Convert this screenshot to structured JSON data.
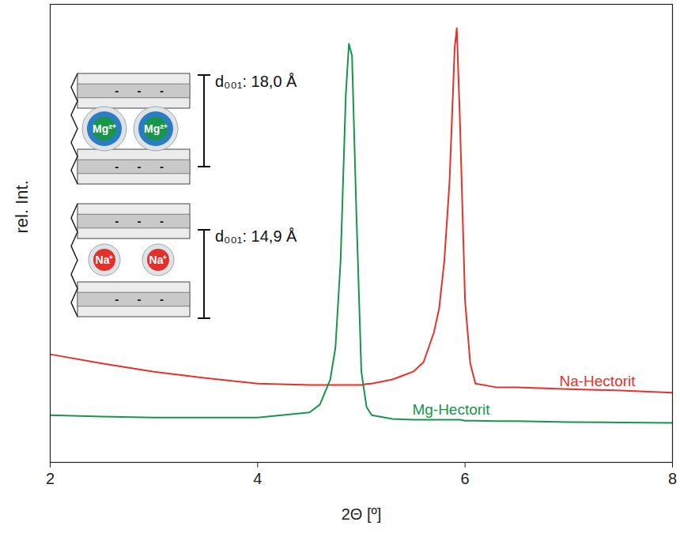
{
  "chart_data": {
    "type": "line",
    "xlabel": "2Θ [º]",
    "ylabel": "rel. Int.",
    "x": [
      2,
      2.5,
      3,
      3.5,
      4,
      4.5,
      4.6,
      4.7,
      4.75,
      4.8,
      4.85,
      4.88,
      4.91,
      4.95,
      5.0,
      5.05,
      5.1,
      5.3,
      5.5,
      5.6,
      5.7,
      5.75,
      5.8,
      5.85,
      5.9,
      5.92,
      5.95,
      6.0,
      6.05,
      6.1,
      6.3,
      6.5,
      7,
      7.5,
      8
    ],
    "series": [
      {
        "name": "Na-Hectorit",
        "color": "#e5322a",
        "values": [
          23.6,
          21.6,
          19.8,
          18.4,
          17.2,
          16.9,
          16.9,
          16.9,
          16.9,
          16.9,
          16.9,
          16.9,
          16.9,
          16.9,
          16.9,
          17.1,
          17.2,
          18.1,
          19.8,
          21.9,
          28.4,
          33.6,
          44.0,
          61.2,
          90.5,
          94.8,
          75.0,
          35.3,
          21.6,
          17.2,
          16.4,
          16.4,
          16.0,
          15.7,
          15.2
        ]
      },
      {
        "name": "Mg-Hectorit",
        "color": "#17964a",
        "values": [
          10.3,
          10.0,
          9.8,
          9.8,
          9.8,
          10.9,
          12.6,
          18.1,
          25.0,
          44.0,
          80.2,
          91.4,
          88.8,
          56.0,
          19.8,
          12.1,
          10.3,
          9.5,
          9.3,
          9.3,
          9.3,
          9.3,
          9.3,
          9.3,
          9.3,
          9.3,
          9.3,
          9.1,
          9.1,
          9.1,
          9.0,
          9.0,
          8.8,
          8.7,
          8.6
        ]
      }
    ],
    "xlim": [
      2,
      8
    ],
    "xticks": [
      2,
      4,
      6,
      8
    ],
    "ylim": [
      0,
      100
    ],
    "tick_labels": "x",
    "schematics": [
      {
        "ion": "Mg²⁺",
        "label": "d₀₀₁: 18,0 Å"
      },
      {
        "ion": "Na⁺",
        "label": "d₀₀₁: 14,9 Å"
      }
    ],
    "layer_charge": "-"
  }
}
